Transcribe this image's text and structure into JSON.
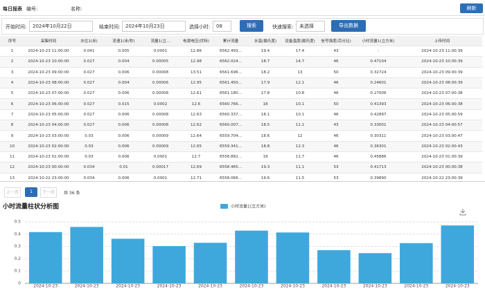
{
  "header": {
    "title": "每日报表",
    "code_label": "编号:",
    "name_label": "名称:",
    "refresh_button": "刷新"
  },
  "filters": {
    "start_label": "开始时间:",
    "start_value": "2024年10月22日",
    "end_label": "结束时间:",
    "end_value": "2024年10月23日",
    "hour_label": "选择小时:",
    "hour_value": "08",
    "search_button": "搜索",
    "quick_label": "快速搜索:",
    "quick_value": "未选择",
    "export_button": "导出数据"
  },
  "table": {
    "columns": [
      "序号",
      "采集时间",
      "水位1(米)",
      "流速1(米/秒)",
      "流量1(立...",
      "电源电压(伏特)",
      "累计流量",
      "水温(摄氏度)",
      "设备温度(摄氏度)",
      "信号强度(百分比)",
      "小时流量1(立方米)",
      "上传时间"
    ],
    "rows": [
      [
        "1",
        "2024-10-23 11:00:00",
        "0.041",
        "0.005",
        "0.0001",
        "12.86",
        "6562.493...",
        "19.4",
        "17.4",
        "43",
        "-",
        "2024-10-23 11:00:39"
      ],
      [
        "2",
        "2024-10-23 10:00:00",
        "0.027",
        "0.004",
        "0.00005",
        "12.98",
        "6562.024...",
        "18.7",
        "14.7",
        "46",
        "0.47104",
        "2024-10-23 10:00:39"
      ],
      [
        "3",
        "2024-10-23 09:00:00",
        "0.027",
        "0.006",
        "0.00008",
        "13.51",
        "6561.696...",
        "18.2",
        "13",
        "50",
        "0.32724",
        "2024-10-23 09:00:39"
      ],
      [
        "4",
        "2024-10-23 08:00:00",
        "0.027",
        "0.004",
        "0.00006",
        "12.95",
        "6561.450...",
        "17.9",
        "12.1",
        "46",
        "0.24601",
        "2024-10-23 08:00:39"
      ],
      [
        "5",
        "2024-10-23 07:00:00",
        "0.027",
        "0.006",
        "0.00008",
        "12.61",
        "6561.180...",
        "17.8",
        "10.8",
        "46",
        "0.27006",
        "2024-10-23 07:00:38"
      ],
      [
        "6",
        "2024-10-23 06:00:00",
        "0.027",
        "0.015",
        "0.0002",
        "12.6",
        "6560.766...",
        "18",
        "10.1",
        "50",
        "0.41393",
        "2024-10-23 06:00:38"
      ],
      [
        "7",
        "2024-10-23 05:00:00",
        "0.027",
        "0.006",
        "0.00008",
        "12.63",
        "6560.337...",
        "18.1",
        "10.1",
        "46",
        "0.42897",
        "2024-10-23 05:00:59"
      ],
      [
        "8",
        "2024-10-23 04:00:00",
        "0.027",
        "0.006",
        "0.00008",
        "12.62",
        "6560.007...",
        "18.5",
        "11.1",
        "43",
        "0.33001",
        "2024-10-23 04:00:57"
      ],
      [
        "9",
        "2024-10-23 03:00:00",
        "0.03",
        "0.006",
        "0.00009",
        "12.64",
        "6559.704...",
        "18.6",
        "12",
        "46",
        "0.30311",
        "2024-10-23 03:00:47"
      ],
      [
        "10",
        "2024-10-23 02:00:00",
        "0.03",
        "0.006",
        "0.00009",
        "12.65",
        "6559.341...",
        "18.8",
        "12.3",
        "46",
        "0.36301",
        "2024-10-23 02:00:43"
      ],
      [
        "11",
        "2024-10-23 01:00:00",
        "0.03",
        "0.006",
        "0.0001",
        "12.7",
        "6558.882...",
        "19",
        "11.7",
        "46",
        "0.45886",
        "2024-10-23 01:00:39"
      ],
      [
        "12",
        "2024-10-23 00:00:00",
        "0.034",
        "0.01",
        "0.00017",
        "12.69",
        "6558.465...",
        "19.3",
        "11.1",
        "53",
        "0.41713",
        "2024-10-23 00:00:38"
      ],
      [
        "13",
        "2024-10-22 23:00:00",
        "0.034",
        "0.006",
        "0.0001",
        "12.71",
        "6558.066...",
        "19.6",
        "11.5",
        "53",
        "0.39890",
        "2024-10-22 23:00:39"
      ]
    ]
  },
  "pagination": {
    "prev": "上一页",
    "page": "1",
    "next": "下一页",
    "total": "共 36 条"
  },
  "chart_data": {
    "type": "bar",
    "title": "小时流量柱状分析图",
    "categories": [
      "2024-10-23",
      "2024-10-23",
      "2024-10-23",
      "2024-10-23",
      "2024-10-23",
      "2024-10-23",
      "2024-10-23",
      "2024-10-23",
      "2024-10-23",
      "2024-10-23",
      "2024-10-23"
    ],
    "series": [
      {
        "name": "小时流量1(立方米)",
        "color": "#3ea8dd",
        "values": [
          0.41713,
          0.45886,
          0.36301,
          0.30311,
          0.33001,
          0.42897,
          0.41393,
          0.27006,
          0.24601,
          0.32724,
          0.47104
        ]
      }
    ],
    "ylim": [
      0,
      0.5
    ],
    "yticks": [
      0,
      0.1,
      0.2,
      0.3,
      0.4,
      0.5
    ],
    "grid": true,
    "legend": "top"
  }
}
